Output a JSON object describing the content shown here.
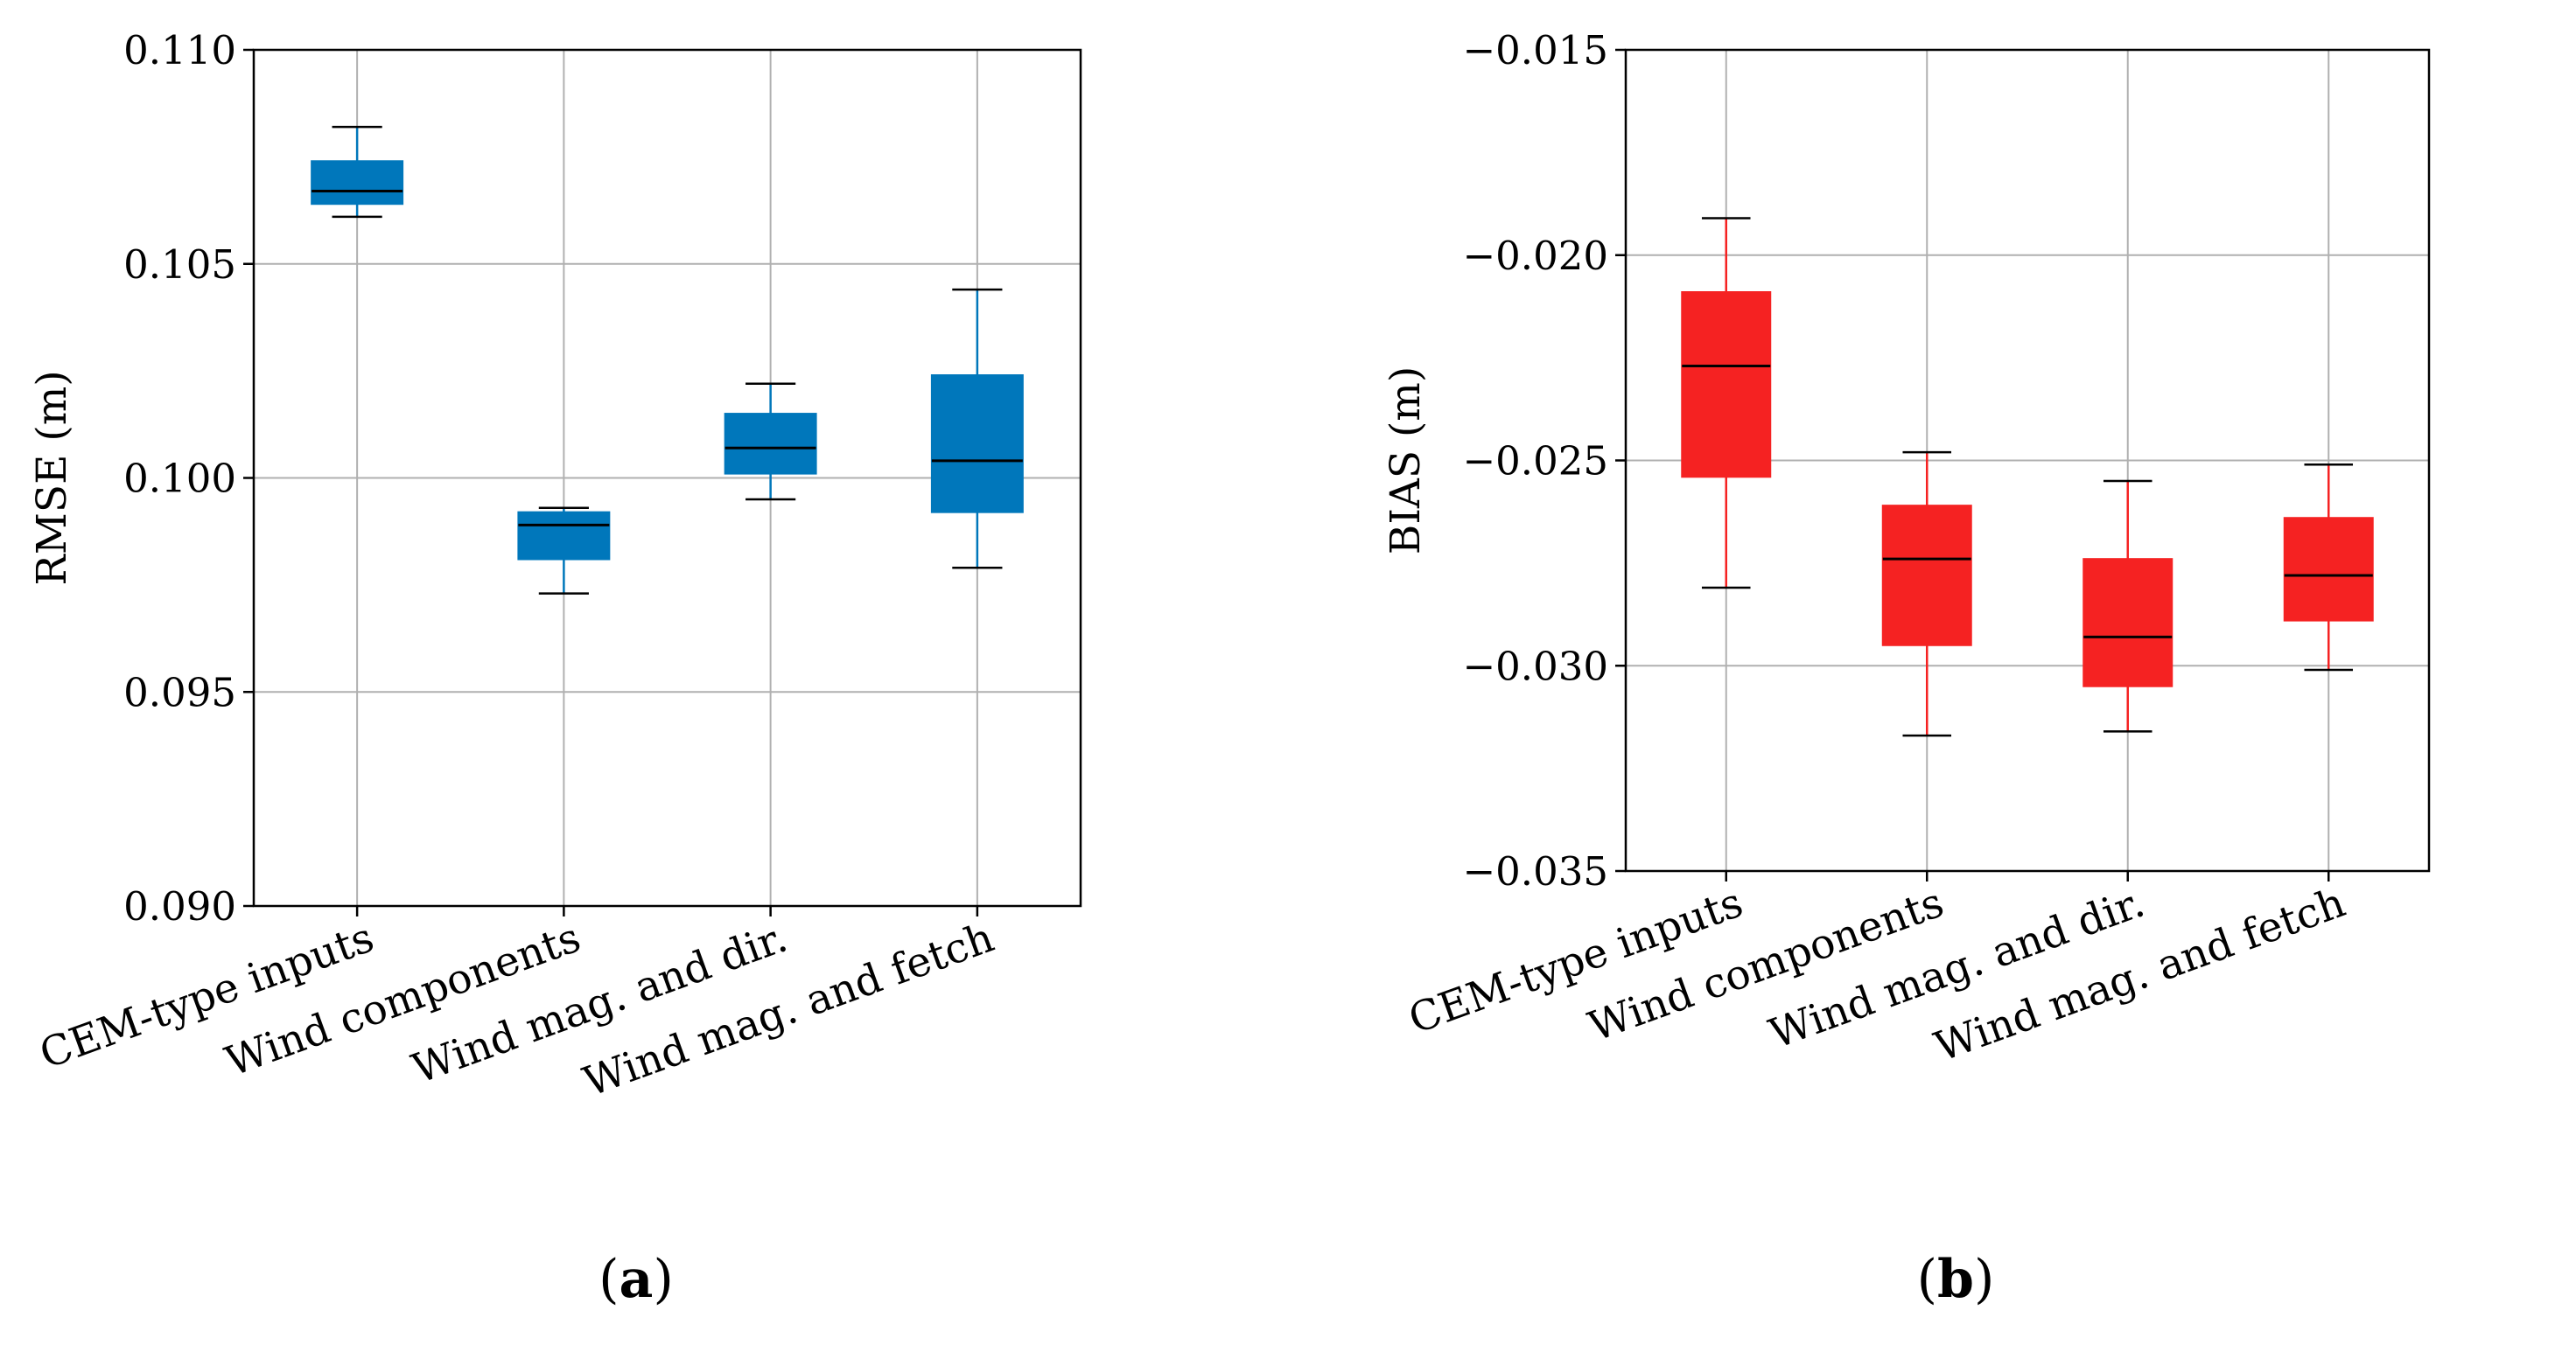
{
  "chart_data": [
    {
      "type": "box",
      "panel_label": "(a)",
      "panel_label_parts": [
        "(",
        "a",
        ")"
      ],
      "ylabel": "RMSE (m)",
      "xlabel": "",
      "categories": [
        "CEM-type inputs",
        "Wind components",
        "Wind mag. and dir.",
        "Wind mag. and fetch"
      ],
      "ylim": [
        0.09,
        0.11
      ],
      "yticks": [
        0.09,
        0.095,
        0.1,
        0.105,
        0.11
      ],
      "ytick_labels": [
        "0.090",
        "0.095",
        "0.100",
        "0.105",
        "0.110"
      ],
      "grid": true,
      "box_color": "#0077bb",
      "boxes": [
        {
          "whisker_low": 0.1061,
          "q1": 0.1064,
          "median": 0.1067,
          "q3": 0.1074,
          "whisker_high": 0.1082
        },
        {
          "whisker_low": 0.0973,
          "q1": 0.0981,
          "median": 0.0989,
          "q3": 0.0992,
          "whisker_high": 0.0993
        },
        {
          "whisker_low": 0.0995,
          "q1": 0.1001,
          "median": 0.1007,
          "q3": 0.1015,
          "whisker_high": 0.1022
        },
        {
          "whisker_low": 0.0979,
          "q1": 0.0992,
          "median": 0.1004,
          "q3": 0.1024,
          "whisker_high": 0.1044
        }
      ]
    },
    {
      "type": "box",
      "panel_label": "(b)",
      "panel_label_parts": [
        "(",
        "b",
        ")"
      ],
      "ylabel": "BIAS (m)",
      "xlabel": "",
      "categories": [
        "CEM-type inputs",
        "Wind components",
        "Wind mag. and dir.",
        "Wind mag. and fetch"
      ],
      "ylim": [
        -0.035,
        -0.015
      ],
      "yticks": [
        -0.035,
        -0.03,
        -0.025,
        -0.02,
        -0.015
      ],
      "ytick_labels": [
        "−0.035",
        "−0.030",
        "−0.025",
        "−0.020",
        "−0.015"
      ],
      "grid": true,
      "box_color": "#f52222",
      "boxes": [
        {
          "whisker_low": -0.0281,
          "q1": -0.0254,
          "median": -0.0227,
          "q3": -0.0209,
          "whisker_high": -0.0191
        },
        {
          "whisker_low": -0.0317,
          "q1": -0.0295,
          "median": -0.0274,
          "q3": -0.0261,
          "whisker_high": -0.0248
        },
        {
          "whisker_low": -0.0316,
          "q1": -0.0305,
          "median": -0.0293,
          "q3": -0.0274,
          "whisker_high": -0.0255
        },
        {
          "whisker_low": -0.0301,
          "q1": -0.0289,
          "median": -0.0278,
          "q3": -0.0264,
          "whisker_high": -0.0251
        }
      ]
    }
  ]
}
